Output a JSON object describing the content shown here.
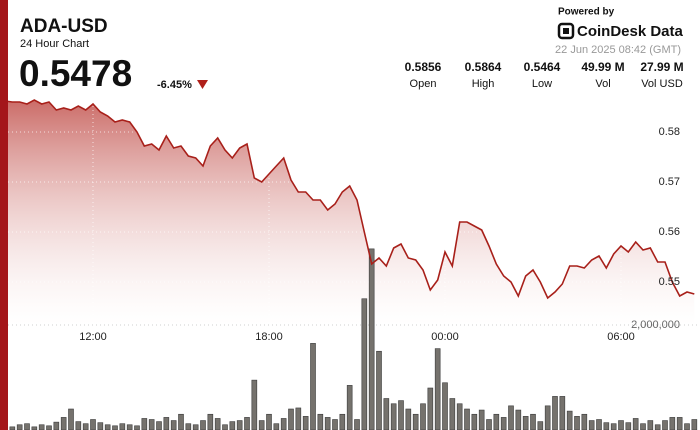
{
  "header": {
    "title": "ADA-USD",
    "subtitle": "24 Hour Chart",
    "price": "0.5478",
    "change": "-6.45%",
    "powered_by": "Powered by",
    "brand": "CoinDesk Data",
    "timestamp": "22 Jun 2025 08:42 (GMT)",
    "stats": [
      {
        "value": "0.5856",
        "label": "Open"
      },
      {
        "value": "0.5864",
        "label": "High"
      },
      {
        "value": "0.5464",
        "label": "Low"
      },
      {
        "value": "49.99 M",
        "label": "Vol"
      },
      {
        "value": "27.99 M",
        "label": "Vol USD"
      }
    ]
  },
  "chart_data": {
    "type": "line",
    "categories": [
      null,
      null,
      null,
      null,
      null,
      null,
      null,
      null,
      null,
      null,
      null,
      null,
      "12:00",
      null,
      null,
      null,
      null,
      null,
      null,
      null,
      null,
      null,
      null,
      null,
      null,
      null,
      null,
      null,
      null,
      null,
      null,
      null,
      null,
      null,
      null,
      null,
      "18:00",
      null,
      null,
      null,
      null,
      null,
      null,
      null,
      null,
      null,
      null,
      null,
      null,
      null,
      null,
      null,
      null,
      null,
      null,
      null,
      null,
      null,
      null,
      null,
      "00:00",
      null,
      null,
      null,
      null,
      null,
      null,
      null,
      null,
      null,
      null,
      null,
      null,
      null,
      null,
      null,
      null,
      null,
      null,
      null,
      null,
      null,
      null,
      null,
      "06:00",
      null,
      null,
      null,
      null,
      null,
      null,
      null,
      null,
      null,
      null
    ],
    "series": [
      {
        "color": "#a8201a",
        "values": [
          0.5862,
          0.586,
          0.586,
          0.5856,
          0.5864,
          0.5856,
          0.586,
          0.5844,
          0.5848,
          0.5844,
          0.5852,
          0.5844,
          0.5856,
          0.584,
          0.5832,
          0.582,
          0.5824,
          0.582,
          0.58,
          0.5772,
          0.5776,
          0.5764,
          0.5792,
          0.5768,
          0.5772,
          0.5752,
          0.5748,
          0.5732,
          0.5772,
          0.5788,
          0.5764,
          0.5748,
          0.5768,
          0.5776,
          0.5708,
          0.57,
          0.5716,
          0.5732,
          0.5748,
          0.5704,
          0.568,
          0.568,
          0.5664,
          0.5664,
          0.5644,
          0.5656,
          0.568,
          0.5692,
          0.5664,
          0.56,
          0.5536,
          0.5548,
          0.5532,
          0.5568,
          0.5576,
          0.5548,
          0.5544,
          0.5524,
          0.5484,
          0.5504,
          0.556,
          0.5532,
          0.562,
          0.562,
          0.5612,
          0.5604,
          0.5572,
          0.5536,
          0.5512,
          0.55,
          0.5472,
          0.5512,
          0.5524,
          0.55,
          0.5468,
          0.548,
          0.5496,
          0.5532,
          0.5532,
          0.5528,
          0.5544,
          0.5552,
          0.5528,
          0.5556,
          0.5572,
          0.556,
          0.558,
          0.5564,
          0.5568,
          0.554,
          0.554,
          0.55,
          0.5472,
          0.548,
          0.5476
        ]
      },
      {
        "type": "bar",
        "axis": "y2",
        "color": "#75726d",
        "values": [
          80000,
          60000,
          100000,
          120000,
          60000,
          100000,
          80000,
          150000,
          240000,
          400000,
          160000,
          120000,
          200000,
          140000,
          100000,
          80000,
          120000,
          100000,
          80000,
          220000,
          200000,
          160000,
          240000,
          180000,
          300000,
          120000,
          100000,
          180000,
          300000,
          220000,
          100000,
          160000,
          180000,
          240000,
          950000,
          180000,
          300000,
          120000,
          220000,
          400000,
          420000,
          260000,
          1650000,
          300000,
          240000,
          200000,
          300000,
          850000,
          200000,
          2500000,
          3450000,
          1500000,
          600000,
          500000,
          560000,
          400000,
          300000,
          500000,
          800000,
          1550000,
          900000,
          600000,
          500000,
          400000,
          300000,
          380000,
          200000,
          300000,
          240000,
          460000,
          380000,
          260000,
          300000,
          160000,
          460000,
          640000,
          640000,
          360000,
          260000,
          300000,
          180000,
          200000,
          140000,
          120000,
          180000,
          140000,
          220000,
          120000,
          180000,
          100000,
          180000,
          240000,
          240000,
          120000,
          200000
        ]
      }
    ],
    "ylim": [
      0.5414,
      0.5884
    ],
    "yticks": [
      0.55,
      0.56,
      0.57,
      0.58
    ],
    "y2lim": [
      0,
      4000000
    ],
    "y2ticks": [
      {
        "value": 2000000,
        "label": "2,000,000"
      }
    ],
    "grid": true
  }
}
